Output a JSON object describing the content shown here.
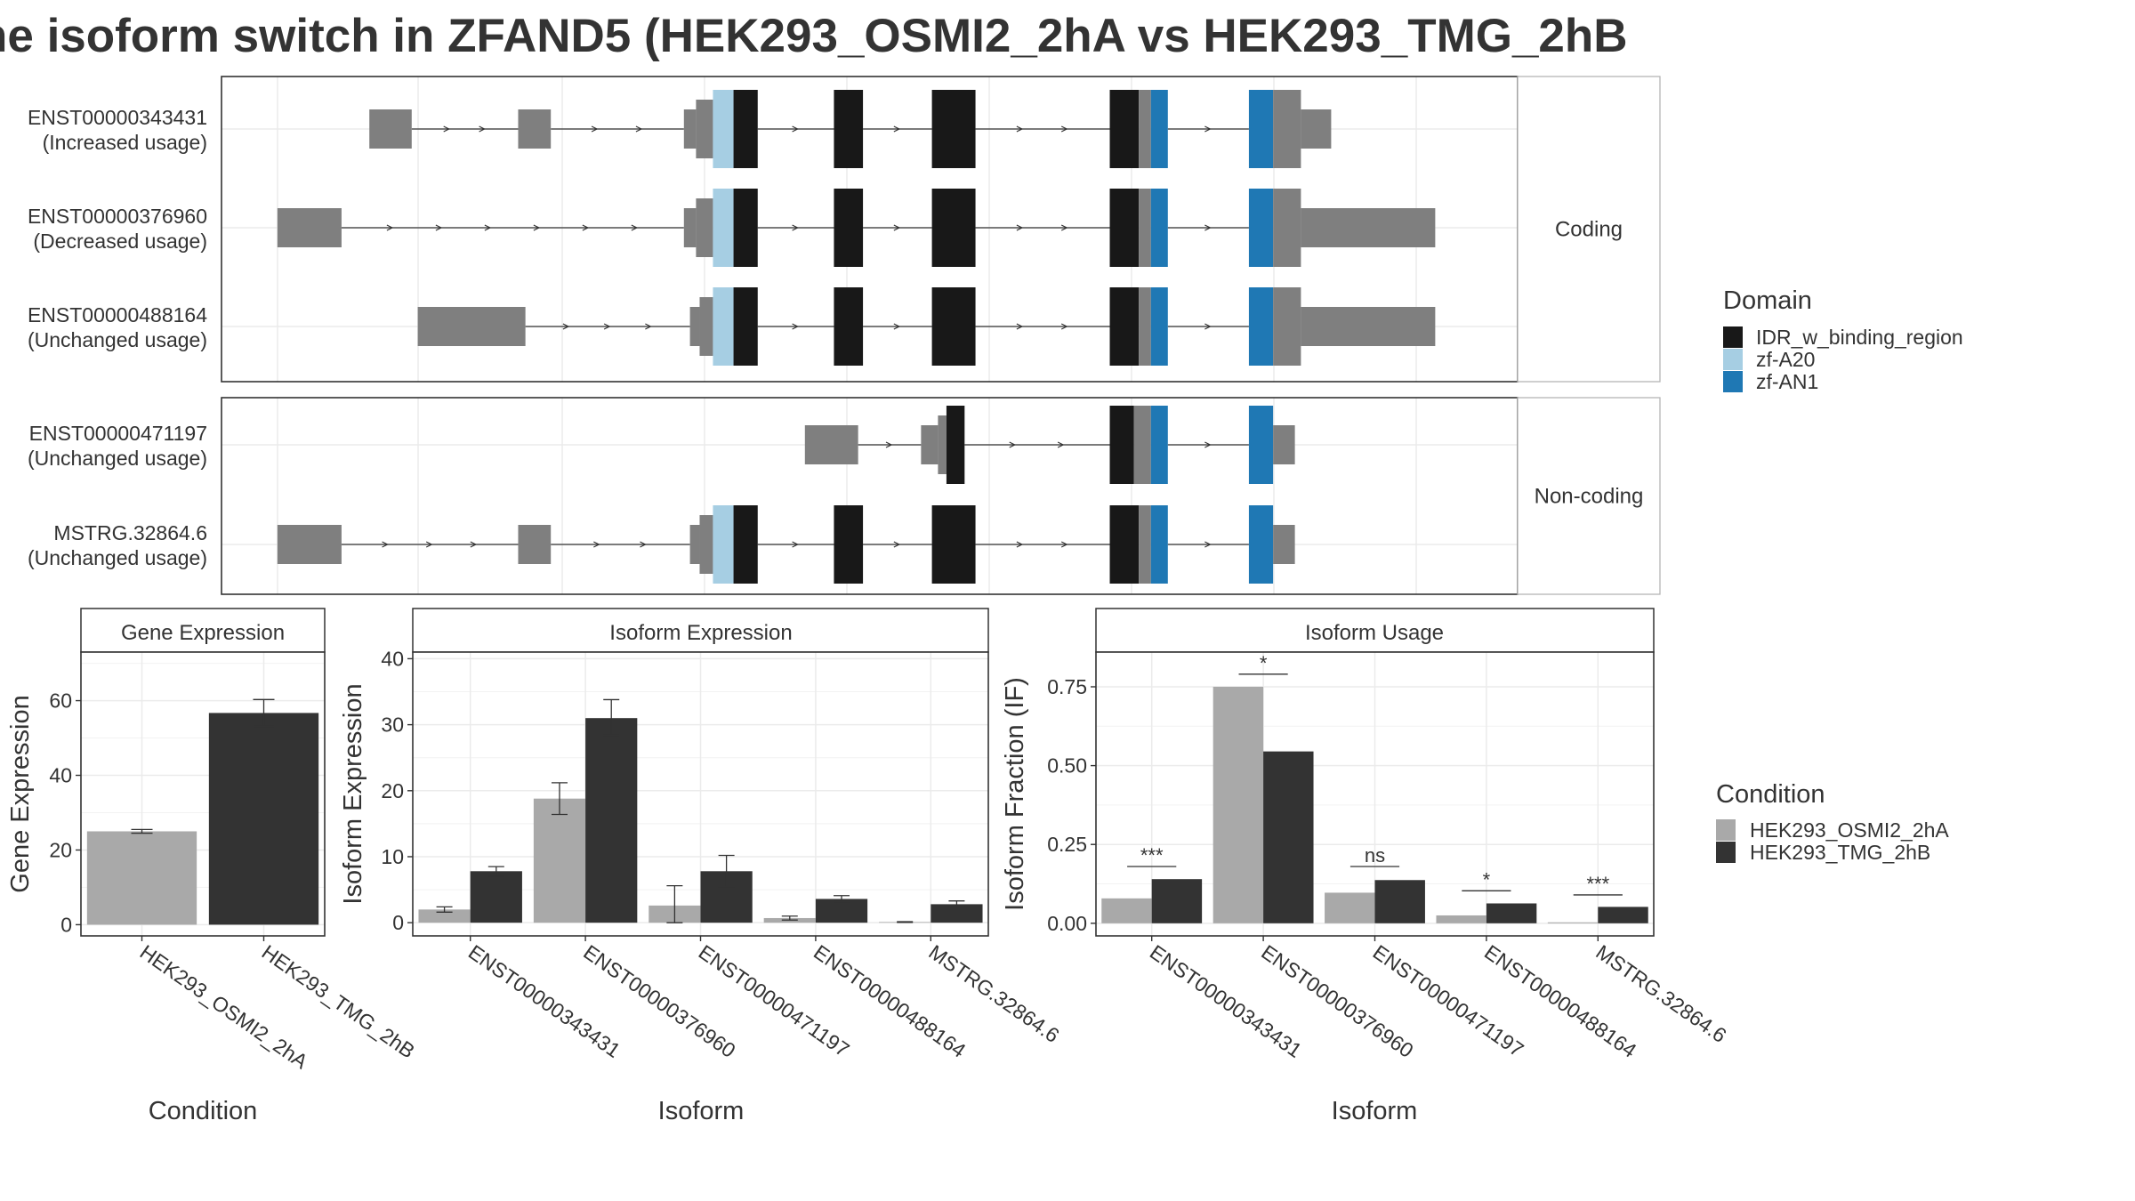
{
  "title": "he isoform switch in ZFAND5 (HEK293_OSMI2_2hA vs HEK293_TMG_2hB",
  "colors": {
    "exon": "#7f7f7f",
    "intron": "#333333",
    "idr": "#181818",
    "zf_a20": "#a6cee3",
    "zf_an1": "#1f78b4",
    "cond1": "#a9a9a9",
    "cond2": "#333333",
    "strip": "#ffffff",
    "grid": "#ebebeb",
    "panel_border": "#333333",
    "strip_border": "#b5b5b5"
  },
  "transcripts": {
    "facets": [
      {
        "label": "Coding",
        "rows": [
          {
            "id": "ENST00000343431",
            "usage": "(Increased usage)"
          },
          {
            "id": "ENST00000376960",
            "usage": "(Decreased usage)"
          },
          {
            "id": "ENST00000488164",
            "usage": "(Unchanged usage)"
          }
        ]
      },
      {
        "label": "Non-coding",
        "rows": [
          {
            "id": "ENST00000471197",
            "usage": "(Unchanged usage)"
          },
          {
            "id": "MSTRG.32864.6",
            "usage": "(Unchanged usage)"
          }
        ]
      }
    ],
    "model": {
      "ENST00000343431": [
        {
          "s": 120,
          "e": 155,
          "t": "utr"
        },
        {
          "s": 243,
          "e": 270,
          "t": "utr"
        },
        {
          "s": 380,
          "e": 390,
          "t": "utr"
        },
        {
          "s": 390,
          "e": 404,
          "t": "utr_big"
        },
        {
          "s": 404,
          "e": 421,
          "t": "zfa20"
        },
        {
          "s": 421,
          "e": 441,
          "t": "idr"
        },
        {
          "s": 504,
          "e": 528,
          "t": "idr"
        },
        {
          "s": 585,
          "e": 621,
          "t": "idr"
        },
        {
          "s": 732,
          "e": 756,
          "t": "idr"
        },
        {
          "s": 756,
          "e": 766,
          "t": "cds"
        },
        {
          "s": 766,
          "e": 780,
          "t": "zfan1"
        },
        {
          "s": 847,
          "e": 867,
          "t": "zfan1"
        },
        {
          "s": 867,
          "e": 890,
          "t": "cds"
        },
        {
          "s": 890,
          "e": 915,
          "t": "utr"
        }
      ],
      "ENST00000376960": [
        {
          "s": 44,
          "e": 97,
          "t": "utr"
        },
        {
          "s": 380,
          "e": 390,
          "t": "utr"
        },
        {
          "s": 390,
          "e": 404,
          "t": "utr_big"
        },
        {
          "s": 404,
          "e": 421,
          "t": "zfa20"
        },
        {
          "s": 421,
          "e": 441,
          "t": "idr"
        },
        {
          "s": 504,
          "e": 528,
          "t": "idr"
        },
        {
          "s": 585,
          "e": 621,
          "t": "idr"
        },
        {
          "s": 732,
          "e": 756,
          "t": "idr"
        },
        {
          "s": 756,
          "e": 766,
          "t": "cds"
        },
        {
          "s": 766,
          "e": 780,
          "t": "zfan1"
        },
        {
          "s": 847,
          "e": 867,
          "t": "zfan1"
        },
        {
          "s": 867,
          "e": 890,
          "t": "cds"
        },
        {
          "s": 890,
          "e": 1001,
          "t": "utr"
        }
      ],
      "ENST00000488164": [
        {
          "s": 160,
          "e": 249,
          "t": "utr"
        },
        {
          "s": 385,
          "e": 393,
          "t": "utr"
        },
        {
          "s": 393,
          "e": 404,
          "t": "utr_big"
        },
        {
          "s": 404,
          "e": 421,
          "t": "zfa20"
        },
        {
          "s": 421,
          "e": 441,
          "t": "idr"
        },
        {
          "s": 504,
          "e": 528,
          "t": "idr"
        },
        {
          "s": 585,
          "e": 621,
          "t": "idr"
        },
        {
          "s": 732,
          "e": 756,
          "t": "idr"
        },
        {
          "s": 756,
          "e": 766,
          "t": "cds"
        },
        {
          "s": 766,
          "e": 780,
          "t": "zfan1"
        },
        {
          "s": 847,
          "e": 867,
          "t": "zfan1"
        },
        {
          "s": 867,
          "e": 890,
          "t": "cds"
        },
        {
          "s": 890,
          "e": 1001,
          "t": "utr"
        }
      ],
      "ENST00000471197": [
        {
          "s": 480,
          "e": 524,
          "t": "utr"
        },
        {
          "s": 576,
          "e": 590,
          "t": "utr"
        },
        {
          "s": 590,
          "e": 597,
          "t": "utr_big"
        },
        {
          "s": 597,
          "e": 612,
          "t": "idr"
        },
        {
          "s": 732,
          "e": 752,
          "t": "idr"
        },
        {
          "s": 752,
          "e": 766,
          "t": "cds"
        },
        {
          "s": 766,
          "e": 780,
          "t": "zfan1"
        },
        {
          "s": 847,
          "e": 867,
          "t": "zfan1"
        },
        {
          "s": 867,
          "e": 885,
          "t": "utr"
        }
      ],
      "MSTRG.32864.6": [
        {
          "s": 44,
          "e": 97,
          "t": "utr"
        },
        {
          "s": 243,
          "e": 270,
          "t": "utr"
        },
        {
          "s": 385,
          "e": 393,
          "t": "utr"
        },
        {
          "s": 393,
          "e": 404,
          "t": "utr_big"
        },
        {
          "s": 404,
          "e": 421,
          "t": "zfa20"
        },
        {
          "s": 421,
          "e": 441,
          "t": "idr"
        },
        {
          "s": 504,
          "e": 528,
          "t": "idr"
        },
        {
          "s": 585,
          "e": 621,
          "t": "idr"
        },
        {
          "s": 732,
          "e": 756,
          "t": "idr"
        },
        {
          "s": 756,
          "e": 766,
          "t": "cds"
        },
        {
          "s": 766,
          "e": 780,
          "t": "zfan1"
        },
        {
          "s": 847,
          "e": 867,
          "t": "zfan1"
        },
        {
          "s": 867,
          "e": 885,
          "t": "utr"
        }
      ]
    }
  },
  "domain_legend": {
    "title": "Domain",
    "items": [
      {
        "label": "IDR_w_binding_region",
        "color": "#181818"
      },
      {
        "label": "zf-A20",
        "color": "#a6cee3"
      },
      {
        "label": "zf-AN1",
        "color": "#1f78b4"
      }
    ]
  },
  "condition_legend": {
    "title": "Condition",
    "items": [
      {
        "label": "HEK293_OSMI2_2hA",
        "color": "#a9a9a9"
      },
      {
        "label": "HEK293_TMG_2hB",
        "color": "#333333"
      }
    ]
  },
  "chart_data": [
    {
      "type": "bar",
      "title": "Gene Expression",
      "xlabel": "Condition",
      "ylabel": "Gene Expression",
      "ylim": [
        -3,
        73
      ],
      "yticks": [
        0,
        20,
        40,
        60
      ],
      "categories": [
        "HEK293_OSMI2_2hA",
        "HEK293_TMG_2hB"
      ],
      "values": [
        25.0,
        56.7
      ],
      "errors": [
        [
          24.5,
          25.5
        ],
        [
          53.1,
          60.3
        ]
      ],
      "grid": true
    },
    {
      "type": "bar",
      "title": "Isoform Expression",
      "xlabel": "Isoform",
      "ylabel": "Isoform Expression",
      "ylim": [
        -2,
        41
      ],
      "yticks": [
        0,
        10,
        20,
        30,
        40
      ],
      "categories": [
        "ENST00000343431",
        "ENST00000376960",
        "ENST00000471197",
        "ENST00000488164",
        "MSTRG.32864.6"
      ],
      "series": [
        {
          "name": "HEK293_OSMI2_2hA",
          "values": [
            2.0,
            18.8,
            2.6,
            0.7,
            0.1
          ],
          "errors": [
            [
              1.6,
              2.4
            ],
            [
              16.4,
              21.2
            ],
            [
              0,
              5.6
            ],
            [
              0.4,
              1.0
            ],
            [
              0.05,
              0.15
            ]
          ]
        },
        {
          "name": "HEK293_TMG_2hB",
          "values": [
            7.8,
            31.0,
            7.8,
            3.6,
            2.8
          ],
          "errors": [
            [
              7.0,
              8.5
            ],
            [
              28.4,
              33.8
            ],
            [
              5.4,
              10.2
            ],
            [
              3.2,
              4.1
            ],
            [
              2.5,
              3.3
            ]
          ]
        }
      ],
      "grid": true
    },
    {
      "type": "bar",
      "title": "Isoform Usage",
      "xlabel": "Isoform",
      "ylabel": "Isoform Fraction (IF)",
      "ylim": [
        -0.04,
        0.86
      ],
      "yticks": [
        0,
        0.25,
        0.5,
        0.75
      ],
      "ytick_labels": [
        "0.00",
        "0.25",
        "0.50",
        "0.75"
      ],
      "categories": [
        "ENST00000343431",
        "ENST00000376960",
        "ENST00000471197",
        "ENST00000488164",
        "MSTRG.32864.6"
      ],
      "series": [
        {
          "name": "HEK293_OSMI2_2hA",
          "values": [
            0.079,
            0.75,
            0.097,
            0.025,
            0.003
          ]
        },
        {
          "name": "HEK293_TMG_2hB",
          "values": [
            0.14,
            0.545,
            0.137,
            0.063,
            0.052
          ]
        }
      ],
      "significance": [
        {
          "label": "***",
          "y": 0.18
        },
        {
          "label": "*",
          "y": 0.79
        },
        {
          "label": "ns",
          "y": 0.18
        },
        {
          "label": "*",
          "y": 0.103
        },
        {
          "label": "***",
          "y": 0.09
        }
      ],
      "grid": true
    }
  ]
}
